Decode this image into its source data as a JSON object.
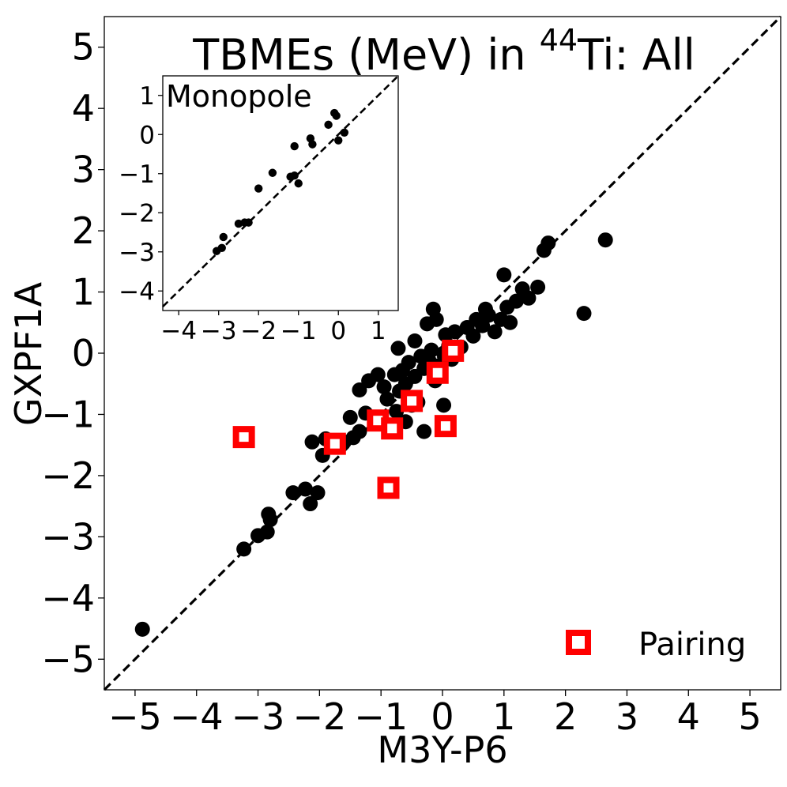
{
  "chart_data": [
    {
      "type": "scatter",
      "title_main": "TBMEs (MeV) in ",
      "title_sup": "44",
      "title_tail": "Ti: All",
      "xlabel": "M3Y-P6",
      "ylabel": "GXPF1A",
      "xlim": [
        -5.5,
        5.5
      ],
      "ylim": [
        -5.5,
        5.5
      ],
      "xticks": [
        -5,
        -4,
        -3,
        -2,
        -1,
        0,
        1,
        2,
        3,
        4,
        5
      ],
      "yticks": [
        -5,
        -4,
        -3,
        -2,
        -1,
        0,
        1,
        2,
        3,
        4,
        5
      ],
      "xtick_labels": [
        "−5",
        "−4",
        "−3",
        "−2",
        "−1",
        "0",
        "1",
        "2",
        "3",
        "4",
        "5"
      ],
      "ytick_labels": [
        "−5",
        "−4",
        "−3",
        "−2",
        "−1",
        "0",
        "1",
        "2",
        "3",
        "4",
        "5"
      ],
      "legend_position": "bottom-right",
      "reference_line": "y = x (dashed)",
      "series": [
        {
          "name": "",
          "marker": "circle",
          "color": "#000000",
          "points": [
            [
              -4.88,
              -4.51
            ],
            [
              -3.23,
              -3.2
            ],
            [
              -3.0,
              -2.98
            ],
            [
              -2.85,
              -2.92
            ],
            [
              -2.83,
              -2.63
            ],
            [
              -2.8,
              -2.72
            ],
            [
              -2.43,
              -2.28
            ],
            [
              -2.23,
              -2.22
            ],
            [
              -2.15,
              -2.46
            ],
            [
              -2.03,
              -2.28
            ],
            [
              -2.12,
              -1.45
            ],
            [
              -1.95,
              -1.67
            ],
            [
              -1.9,
              -1.4
            ],
            [
              -1.6,
              -1.45
            ],
            [
              -1.45,
              -1.38
            ],
            [
              -1.35,
              -1.28
            ],
            [
              -1.5,
              -1.05
            ],
            [
              -1.25,
              -0.98
            ],
            [
              -1.35,
              -0.6
            ],
            [
              -1.2,
              -0.45
            ],
            [
              -1.05,
              -0.35
            ],
            [
              -0.95,
              -0.55
            ],
            [
              -0.9,
              -0.75
            ],
            [
              -0.78,
              -0.35
            ],
            [
              -0.7,
              -0.62
            ],
            [
              -0.75,
              -0.95
            ],
            [
              -0.6,
              -0.5
            ],
            [
              -0.55,
              -0.15
            ],
            [
              -0.45,
              -0.38
            ],
            [
              -0.4,
              -0.8
            ],
            [
              -0.35,
              -0.05
            ],
            [
              -0.3,
              -0.25
            ],
            [
              -0.22,
              -0.12
            ],
            [
              -0.18,
              0.05
            ],
            [
              -0.12,
              -0.45
            ],
            [
              -0.05,
              -0.2
            ],
            [
              0.02,
              0.0
            ],
            [
              0.1,
              0.12
            ],
            [
              -0.25,
              0.48
            ],
            [
              -0.15,
              0.72
            ],
            [
              -0.1,
              0.55
            ],
            [
              0.05,
              0.3
            ],
            [
              -0.72,
              0.08
            ],
            [
              -0.3,
              -1.28
            ],
            [
              0.02,
              -0.85
            ],
            [
              0.2,
              0.35
            ],
            [
              0.3,
              0.1
            ],
            [
              0.4,
              0.42
            ],
            [
              0.5,
              0.28
            ],
            [
              0.55,
              0.55
            ],
            [
              0.65,
              0.45
            ],
            [
              0.7,
              0.72
            ],
            [
              0.75,
              0.62
            ],
            [
              0.85,
              0.35
            ],
            [
              0.95,
              0.55
            ],
            [
              1.0,
              1.28
            ],
            [
              1.05,
              0.75
            ],
            [
              1.1,
              0.5
            ],
            [
              1.2,
              0.85
            ],
            [
              1.3,
              1.05
            ],
            [
              1.4,
              0.9
            ],
            [
              1.55,
              1.08
            ],
            [
              1.65,
              1.68
            ],
            [
              1.72,
              1.8
            ],
            [
              2.3,
              0.65
            ],
            [
              2.65,
              1.85
            ],
            [
              -0.5,
              -0.85
            ],
            [
              -1.05,
              -1.05
            ],
            [
              -0.65,
              -0.28
            ],
            [
              -0.45,
              0.2
            ],
            [
              0.15,
              -0.1
            ],
            [
              -0.6,
              -1.12
            ]
          ]
        },
        {
          "name": "Pairing",
          "marker": "square-open",
          "color": "#ff0000",
          "points": [
            [
              -3.23,
              -1.37
            ],
            [
              -1.75,
              -1.48
            ],
            [
              -1.05,
              -1.1
            ],
            [
              -0.82,
              -1.23
            ],
            [
              -0.88,
              -2.2
            ],
            [
              0.05,
              -1.19
            ],
            [
              0.17,
              0.04
            ],
            [
              -0.5,
              -0.78
            ],
            [
              -0.08,
              -0.32
            ]
          ]
        }
      ]
    },
    {
      "type": "scatter",
      "title": "Monopole",
      "xlim": [
        -4.4,
        1.5
      ],
      "ylim": [
        -4.5,
        1.5
      ],
      "xticks": [
        -4,
        -3,
        -2,
        -1,
        0,
        1
      ],
      "yticks": [
        -4,
        -3,
        -2,
        -1,
        0,
        1
      ],
      "xtick_labels": [
        "−4",
        "−3",
        "−2",
        "−1",
        "0",
        "1"
      ],
      "ytick_labels": [
        "−4",
        "−3",
        "−2",
        "−1",
        "0",
        "1"
      ],
      "reference_line": "y = x (dashed)",
      "series": [
        {
          "name": "",
          "marker": "circle",
          "color": "#000000",
          "points": [
            [
              -3.05,
              -2.98
            ],
            [
              -2.92,
              -2.9
            ],
            [
              -2.88,
              -2.62
            ],
            [
              -2.5,
              -2.28
            ],
            [
              -2.35,
              -2.25
            ],
            [
              -2.25,
              -2.25
            ],
            [
              -2.0,
              -1.38
            ],
            [
              -1.65,
              -0.98
            ],
            [
              -1.2,
              -1.08
            ],
            [
              -1.1,
              -1.05
            ],
            [
              -1.0,
              -1.25
            ],
            [
              -1.1,
              -0.3
            ],
            [
              -0.7,
              -0.1
            ],
            [
              -0.65,
              -0.25
            ],
            [
              -0.25,
              0.25
            ],
            [
              -0.1,
              0.55
            ],
            [
              -0.05,
              0.48
            ],
            [
              0.0,
              -0.15
            ],
            [
              0.15,
              0.05
            ]
          ]
        }
      ]
    }
  ]
}
